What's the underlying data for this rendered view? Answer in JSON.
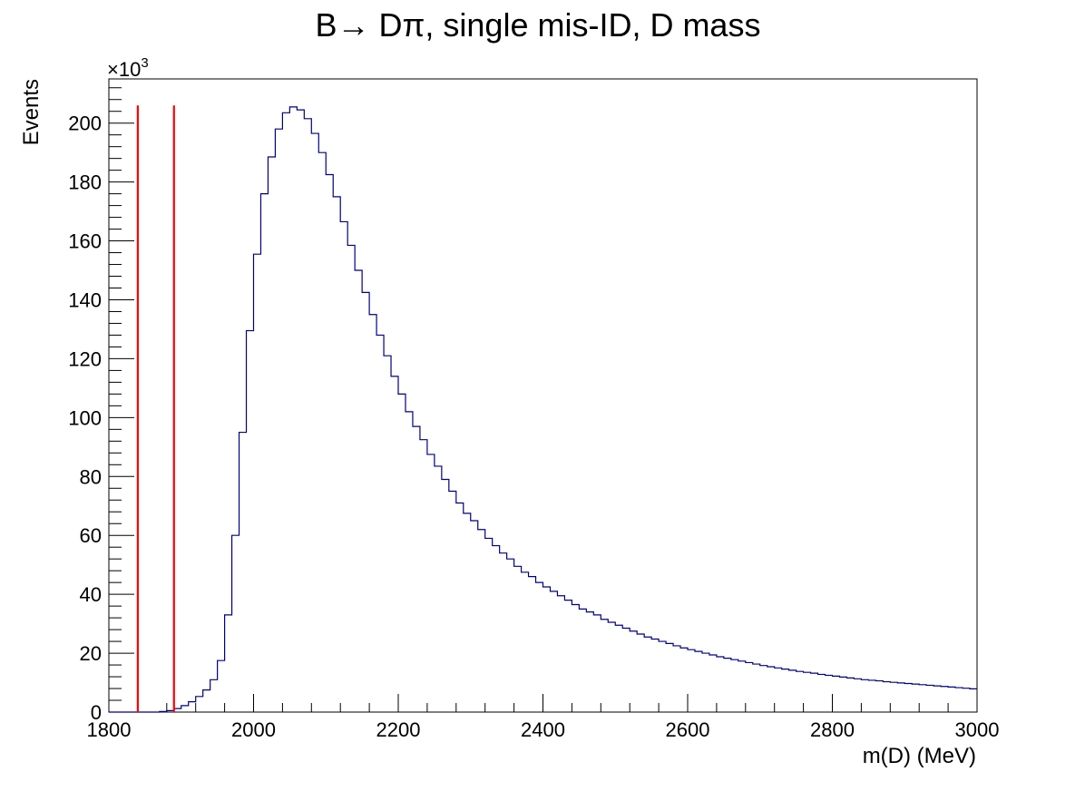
{
  "chart_data": {
    "type": "histogram",
    "title": "B→ Dπ, single mis-ID, D mass",
    "xlabel": "m(D) (MeV)",
    "ylabel": "Events",
    "y_multiplier_label": "×10",
    "y_multiplier_exponent": "3",
    "xlim": [
      1800,
      3000
    ],
    "ylim": [
      0,
      215
    ],
    "x_ticks": [
      1800,
      2000,
      2200,
      2400,
      2600,
      2800,
      3000
    ],
    "y_ticks": [
      0,
      20,
      40,
      60,
      80,
      100,
      120,
      140,
      160,
      180,
      200
    ],
    "bin_width": 10,
    "line_color": "#000080",
    "marker_color": "#ff0000",
    "markers": [
      {
        "x": 1840,
        "y_top": 206
      },
      {
        "x": 1890,
        "y_top": 206
      }
    ],
    "series": [
      {
        "values": [
          0,
          0,
          0,
          0,
          0,
          0,
          0,
          0.2,
          0.5,
          1.2,
          2.2,
          3.5,
          5.3,
          7.5,
          11,
          17.5,
          33,
          60,
          95,
          129.5,
          155.5,
          176,
          188.5,
          198,
          203.5,
          205.5,
          204.5,
          201.5,
          196.5,
          190,
          182.5,
          175,
          166.5,
          158.5,
          150,
          142.5,
          135,
          128,
          121,
          114,
          108,
          102,
          97,
          92.5,
          87.5,
          83.5,
          79,
          75,
          71,
          67.5,
          65,
          62,
          59,
          56.5,
          54,
          52,
          49.5,
          47.5,
          46,
          44,
          42.5,
          41,
          39.5,
          38,
          36.5,
          35,
          34,
          33,
          31.5,
          30.5,
          29.5,
          28.5,
          27.5,
          26.5,
          25.5,
          24.8,
          24,
          23.3,
          22.5,
          21.8,
          21.2,
          20.6,
          20,
          19.4,
          18.8,
          18.3,
          17.8,
          17.3,
          16.8,
          16.3,
          15.8,
          15.4,
          15,
          14.6,
          14.2,
          13.8,
          13.5,
          13.2,
          12.8,
          12.5,
          12.2,
          11.9,
          11.6,
          11.3,
          11,
          10.8,
          10.6,
          10.3,
          10.1,
          9.9,
          9.7,
          9.5,
          9.3,
          9.1,
          8.9,
          8.7,
          8.5,
          8.3,
          8.1,
          7.9
        ]
      }
    ]
  }
}
